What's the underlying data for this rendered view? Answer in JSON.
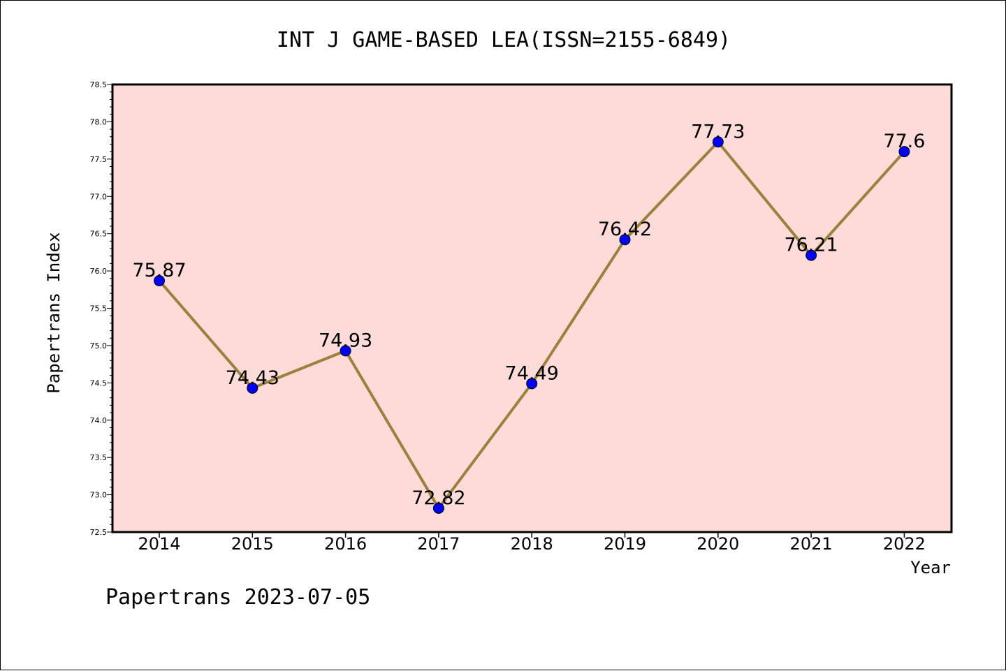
{
  "chart_data": {
    "type": "line",
    "title": "INT J GAME-BASED LEA(ISSN=2155-6849)",
    "xlabel": "Year",
    "ylabel": "Papertrans Index",
    "categories": [
      "2014",
      "2015",
      "2016",
      "2017",
      "2018",
      "2019",
      "2020",
      "2021",
      "2022"
    ],
    "series": [
      {
        "values": [
          75.87,
          74.43,
          74.93,
          72.82,
          74.49,
          76.42,
          77.73,
          76.21,
          77.6
        ],
        "labels": [
          "75.87",
          "74.43",
          "74.93",
          "72.82",
          "74.49",
          "76.42",
          "77.73",
          "76.21",
          "77.6"
        ]
      }
    ],
    "ylim": [
      72.5,
      78.5
    ],
    "yticks": [
      "72.5",
      "73.0",
      "73.5",
      "74.0",
      "74.5",
      "75.0",
      "75.5",
      "76.0",
      "76.5",
      "77.0",
      "77.5",
      "78.0",
      "78.5"
    ],
    "grid": false,
    "colors": {
      "plot_background": "#fddbd9",
      "line": "#9b8139",
      "marker": "#0000ff"
    }
  },
  "footer": "Papertrans 2023-07-05"
}
